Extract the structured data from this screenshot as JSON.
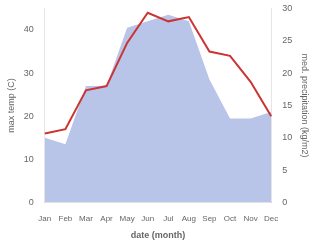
{
  "chart_data": {
    "type": "line",
    "categories": [
      "Jan",
      "Feb",
      "Mar",
      "Apr",
      "May",
      "Jun",
      "Jul",
      "Aug",
      "Sep",
      "Oct",
      "Nov",
      "Dec"
    ],
    "series": [
      {
        "type": "area",
        "axis": "y2",
        "color": "#b8c4e8",
        "values": [
          10,
          9,
          18,
          18,
          27,
          28,
          29,
          28,
          19,
          13,
          13,
          14
        ]
      },
      {
        "type": "line",
        "color": "#cc3333",
        "values": [
          16,
          17,
          26,
          27,
          37,
          44,
          42,
          43,
          35,
          34,
          28,
          20
        ]
      }
    ],
    "xlabel": "date (month)",
    "ylabel": "max temp (C)",
    "y2label": "med. precipitation (kg/m2)",
    "ylim": [
      0,
      45
    ],
    "yticks": [
      0,
      10,
      20,
      30,
      40
    ],
    "y2lim": [
      0,
      30
    ],
    "y2ticks": [
      0,
      5,
      10,
      15,
      20,
      25,
      30
    ],
    "grid": false
  }
}
